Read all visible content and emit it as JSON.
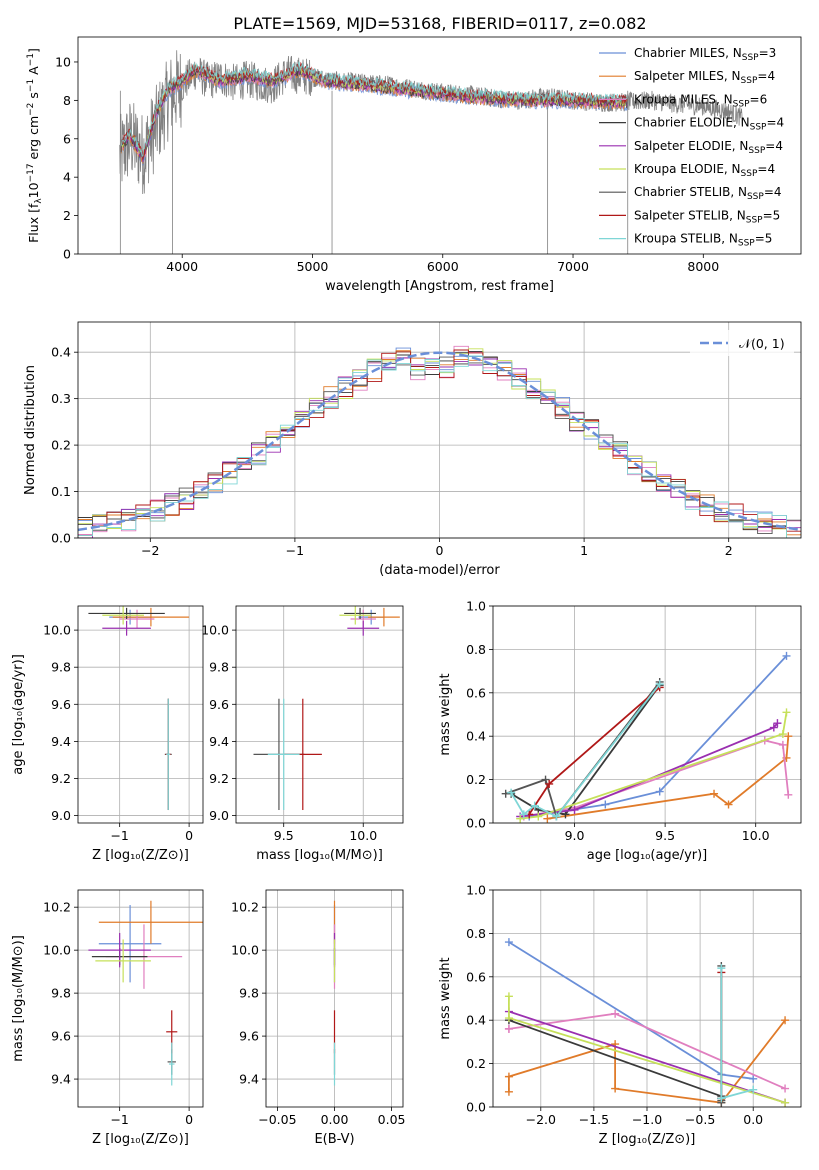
{
  "figure_title": "PLATE=1569, MJD=53168, FIBERID=0117, z=0.082",
  "colors": {
    "chabrier_miles": "#6a8fd8",
    "salpeter_miles": "#e07b2a",
    "kroupa_miles": "#e07fbf",
    "chabrier_elodie": "#3a3a3a",
    "salpeter_elodie": "#9a2fb0",
    "kroupa_elodie": "#c6e05a",
    "chabrier_stelib": "#555555",
    "salpeter_stelib": "#b01818",
    "kroupa_stelib": "#7fd6d6",
    "data": "#808080",
    "gaussian": "#6a8fd8"
  },
  "chart_data": [
    {
      "id": "spectrum",
      "type": "line",
      "xlabel": "wavelength [Angstrom, rest frame]",
      "ylabel": "Flux [f_λ10^-17 erg cm^-2 s^-1 A^-1]",
      "xlim": [
        3200,
        8750
      ],
      "ylim": [
        0,
        11.3
      ],
      "xticks": [
        4000,
        5000,
        6000,
        7000,
        8000
      ],
      "yticks": [
        0,
        2,
        4,
        6,
        8,
        10
      ],
      "grid": false,
      "legend_position": "right",
      "legend": [
        {
          "label": "Chabrier MILES, N",
          "sub": "SSP",
          "tail": "=3",
          "color_key": "chabrier_miles"
        },
        {
          "label": "Salpeter MILES, N",
          "sub": "SSP",
          "tail": "=4",
          "color_key": "salpeter_miles"
        },
        {
          "label": "Kroupa MILES, N",
          "sub": "SSP",
          "tail": "=6",
          "color_key": "kroupa_miles"
        },
        {
          "label": "Chabrier ELODIE, N",
          "sub": "SSP",
          "tail": "=4",
          "color_key": "chabrier_elodie"
        },
        {
          "label": "Salpeter ELODIE, N",
          "sub": "SSP",
          "tail": "=4",
          "color_key": "salpeter_elodie"
        },
        {
          "label": "Kroupa ELODIE, N",
          "sub": "SSP",
          "tail": "=4",
          "color_key": "kroupa_elodie"
        },
        {
          "label": "Chabrier STELIB, N",
          "sub": "SSP",
          "tail": "=4",
          "color_key": "chabrier_stelib"
        },
        {
          "label": "Salpeter STELIB, N",
          "sub": "SSP",
          "tail": "=5",
          "color_key": "salpeter_stelib"
        },
        {
          "label": "Kroupa STELIB, N",
          "sub": "SSP",
          "tail": "=5",
          "color_key": "kroupa_stelib"
        }
      ],
      "data_continuum": {
        "x": [
          3520,
          3600,
          3700,
          3800,
          3900,
          4000,
          4100,
          4200,
          4300,
          4400,
          4500,
          4600,
          4700,
          4800,
          4900,
          5000,
          5200,
          5400,
          5600,
          5800,
          6000,
          6200,
          6400,
          6600,
          6800,
          7000,
          7200,
          7400,
          7600,
          7800,
          8000,
          8200,
          8300
        ],
        "y": [
          5.0,
          6.0,
          5.2,
          6.6,
          8.2,
          8.8,
          9.5,
          9.0,
          9.2,
          8.9,
          9.1,
          8.9,
          8.8,
          9.4,
          9.3,
          9.2,
          9.0,
          8.9,
          8.8,
          8.6,
          8.4,
          8.3,
          8.1,
          8.0,
          8.2,
          8.0,
          7.9,
          7.9,
          8.0,
          7.8,
          7.7,
          7.4,
          7.1
        ]
      },
      "model_continuum": {
        "x": [
          3520,
          3600,
          3700,
          3800,
          3900,
          4000,
          4100,
          4200,
          4300,
          4500,
          4700,
          4900,
          5100,
          5400,
          5800,
          6200,
          6600,
          7000,
          7400
        ],
        "y": [
          5.5,
          6.2,
          5.0,
          7.4,
          8.6,
          9.0,
          9.6,
          9.3,
          9.0,
          9.3,
          9.0,
          9.6,
          9.0,
          8.8,
          8.5,
          8.2,
          8.0,
          8.0,
          7.9
        ]
      }
    },
    {
      "id": "residuals",
      "type": "step",
      "xlabel": "(data-model)/error",
      "ylabel": "Normed distribution",
      "xlim": [
        -2.5,
        2.5
      ],
      "ylim": [
        0,
        0.465
      ],
      "xticks": [
        -2,
        -1,
        0,
        1,
        2
      ],
      "xtick_labels": [
        "−2",
        "−1",
        "0",
        "1",
        "2"
      ],
      "yticks": [
        0.0,
        0.1,
        0.2,
        0.3,
        0.4
      ],
      "grid": true,
      "legend_position": "top-right",
      "legend_label": "𝒩(0, 1)",
      "gaussian": {
        "mean": 0,
        "sigma": 1
      }
    },
    {
      "id": "age_vs_Z",
      "type": "errorbar",
      "xlabel": "Z [log₁₀(Z/Z⊙)]",
      "ylabel": "age  [log₁₀(age/yr)]",
      "xlim": [
        -1.6,
        0.2
      ],
      "ylim": [
        8.96,
        10.13
      ],
      "xticks": [
        -1,
        0
      ],
      "xtick_labels": [
        "−1",
        "0"
      ],
      "yticks": [
        9.0,
        9.2,
        9.4,
        9.6,
        9.8,
        10.0
      ],
      "grid": true,
      "points": [
        {
          "c": "chabrier_miles",
          "x": -0.85,
          "y": 10.07,
          "xe": 0.3,
          "ye": 0.04
        },
        {
          "c": "salpeter_miles",
          "x": -0.55,
          "y": 10.07,
          "xe": 0.55,
          "ye": 0.05
        },
        {
          "c": "kroupa_miles",
          "x": -0.75,
          "y": 10.06,
          "xe": 0.25,
          "ye": 0.05
        },
        {
          "c": "chabrier_elodie",
          "x": -0.9,
          "y": 10.09,
          "xe": 0.55,
          "ye": 0.03
        },
        {
          "c": "salpeter_elodie",
          "x": -0.9,
          "y": 10.01,
          "xe": 0.35,
          "ye": 0.04
        },
        {
          "c": "kroupa_elodie",
          "x": -0.95,
          "y": 10.08,
          "xe": 0.3,
          "ye": 0.05
        },
        {
          "c": "chabrier_stelib",
          "x": -0.3,
          "y": 9.33,
          "xe": 0.05,
          "ye": 0.3
        },
        {
          "c": "salpeter_stelib",
          "x": -0.3,
          "y": 9.33,
          "xe": 0.04,
          "ye": 0.3
        },
        {
          "c": "kroupa_stelib",
          "x": -0.3,
          "y": 9.33,
          "xe": 0.03,
          "ye": 0.3
        }
      ]
    },
    {
      "id": "age_vs_mass",
      "type": "errorbar",
      "xlabel": "mass [log₁₀(M/M⊙)]",
      "ylabel": "",
      "xlim": [
        9.2,
        10.25
      ],
      "ylim": [
        8.96,
        10.13
      ],
      "xticks": [
        9.5,
        10.0
      ],
      "xtick_labels": [
        "9.5",
        "10.0"
      ],
      "yticks": [
        9.0,
        9.2,
        9.4,
        9.6,
        9.8,
        10.0
      ],
      "grid": true,
      "points": [
        {
          "c": "chabrier_miles",
          "x": 10.05,
          "y": 10.07,
          "xe": 0.08,
          "ye": 0.04
        },
        {
          "c": "salpeter_miles",
          "x": 10.13,
          "y": 10.07,
          "xe": 0.1,
          "ye": 0.05
        },
        {
          "c": "kroupa_miles",
          "x": 10.0,
          "y": 10.06,
          "xe": 0.08,
          "ye": 0.05
        },
        {
          "c": "chabrier_elodie",
          "x": 9.98,
          "y": 10.09,
          "xe": 0.1,
          "ye": 0.03
        },
        {
          "c": "salpeter_elodie",
          "x": 10.0,
          "y": 10.01,
          "xe": 0.1,
          "ye": 0.04
        },
        {
          "c": "kroupa_elodie",
          "x": 9.95,
          "y": 10.08,
          "xe": 0.1,
          "ye": 0.05
        },
        {
          "c": "chabrier_stelib",
          "x": 9.47,
          "y": 9.33,
          "xe": 0.16,
          "ye": 0.3
        },
        {
          "c": "salpeter_stelib",
          "x": 9.62,
          "y": 9.33,
          "xe": 0.12,
          "ye": 0.3
        },
        {
          "c": "kroupa_stelib",
          "x": 9.5,
          "y": 9.33,
          "xe": 0.1,
          "ye": 0.3
        }
      ]
    },
    {
      "id": "massweight_vs_age",
      "type": "line",
      "xlabel": "age  [log₁₀(age/yr)]",
      "ylabel": "mass weight",
      "xlim": [
        8.55,
        10.25
      ],
      "ylim": [
        0.0,
        1.0
      ],
      "xticks": [
        9.0,
        9.5,
        10.0
      ],
      "xtick_labels": [
        "9.0",
        "9.5",
        "10.0"
      ],
      "yticks": [
        0.0,
        0.2,
        0.4,
        0.6,
        0.8,
        1.0
      ],
      "grid": true,
      "series": [
        {
          "c": "chabrier_miles",
          "x": [
            8.75,
            9.17,
            9.47,
            10.17
          ],
          "y": [
            0.03,
            0.085,
            0.145,
            0.77
          ]
        },
        {
          "c": "salpeter_miles",
          "x": [
            8.85,
            9.77,
            9.85,
            10.17,
            10.18
          ],
          "y": [
            0.02,
            0.135,
            0.085,
            0.3,
            0.4
          ]
        },
        {
          "c": "kroupa_miles",
          "x": [
            8.72,
            9.0,
            10.05,
            10.15,
            10.18
          ],
          "y": [
            0.03,
            0.07,
            0.38,
            0.36,
            0.13
          ]
        },
        {
          "c": "chabrier_elodie",
          "x": [
            8.65,
            8.8,
            8.95,
            9.47
          ],
          "y": [
            0.135,
            0.06,
            0.04,
            0.635
          ]
        },
        {
          "c": "salpeter_elodie",
          "x": [
            8.7,
            9.0,
            10.1,
            10.12
          ],
          "y": [
            0.03,
            0.06,
            0.44,
            0.46
          ]
        },
        {
          "c": "kroupa_elodie",
          "x": [
            8.7,
            8.8,
            10.15,
            10.17
          ],
          "y": [
            0.02,
            0.03,
            0.41,
            0.51
          ]
        },
        {
          "c": "chabrier_stelib",
          "x": [
            8.62,
            8.84,
            8.9,
            9.47
          ],
          "y": [
            0.135,
            0.2,
            0.03,
            0.65
          ]
        },
        {
          "c": "salpeter_stelib",
          "x": [
            8.75,
            8.86,
            9.47
          ],
          "y": [
            0.04,
            0.18,
            0.625
          ]
        },
        {
          "c": "kroupa_stelib",
          "x": [
            8.65,
            8.72,
            8.78,
            8.9,
            9.47
          ],
          "y": [
            0.14,
            0.04,
            0.08,
            0.03,
            0.64
          ]
        }
      ]
    },
    {
      "id": "mass_vs_Z",
      "type": "errorbar",
      "xlabel": "Z [log₁₀(Z/Z⊙)]",
      "ylabel": "mass [log₁₀(M/M⊙)]",
      "xlim": [
        -1.6,
        0.2
      ],
      "ylim": [
        9.27,
        10.28
      ],
      "xticks": [
        -1,
        0
      ],
      "xtick_labels": [
        "−1",
        "0"
      ],
      "yticks": [
        9.4,
        9.6,
        9.8,
        10.0,
        10.2
      ],
      "grid": true,
      "points": [
        {
          "c": "chabrier_miles",
          "x": -0.85,
          "y": 10.03,
          "xe": 0.45,
          "ye": 0.18
        },
        {
          "c": "salpeter_miles",
          "x": -0.55,
          "y": 10.13,
          "xe": 0.75,
          "ye": 0.1
        },
        {
          "c": "kroupa_miles",
          "x": -0.65,
          "y": 9.97,
          "xe": 0.55,
          "ye": 0.15
        },
        {
          "c": "chabrier_elodie",
          "x": -1.0,
          "y": 9.97,
          "xe": 0.4,
          "ye": 0.04
        },
        {
          "c": "salpeter_elodie",
          "x": -1.0,
          "y": 10.0,
          "xe": 0.45,
          "ye": 0.08
        },
        {
          "c": "kroupa_elodie",
          "x": -0.95,
          "y": 9.95,
          "xe": 0.4,
          "ye": 0.1
        },
        {
          "c": "chabrier_stelib",
          "x": -0.25,
          "y": 9.48,
          "xe": 0.06,
          "ye": 0.06
        },
        {
          "c": "salpeter_stelib",
          "x": -0.25,
          "y": 9.62,
          "xe": 0.08,
          "ye": 0.1
        },
        {
          "c": "kroupa_stelib",
          "x": -0.25,
          "y": 9.47,
          "xe": 0.04,
          "ye": 0.1
        }
      ]
    },
    {
      "id": "mass_vs_ebv",
      "type": "errorbar",
      "xlabel": "E(B-V)",
      "ylabel": "",
      "xlim": [
        -0.06,
        0.06
      ],
      "ylim": [
        9.27,
        10.28
      ],
      "xticks": [
        -0.05,
        0.0,
        0.05
      ],
      "xtick_labels": [
        "−0.05",
        "0.00",
        "0.05"
      ],
      "yticks": [
        9.4,
        9.6,
        9.8,
        10.0,
        10.2
      ],
      "grid": true,
      "points": [
        {
          "c": "chabrier_miles",
          "x": 0.0,
          "y": 10.03,
          "xe": 0.0,
          "ye": 0.18
        },
        {
          "c": "salpeter_miles",
          "x": 0.0,
          "y": 10.13,
          "xe": 0.0,
          "ye": 0.1
        },
        {
          "c": "kroupa_miles",
          "x": 0.0,
          "y": 9.97,
          "xe": 0.0,
          "ye": 0.15
        },
        {
          "c": "chabrier_elodie",
          "x": 0.0,
          "y": 9.97,
          "xe": 0.0,
          "ye": 0.04
        },
        {
          "c": "salpeter_elodie",
          "x": 0.0,
          "y": 10.0,
          "xe": 0.0,
          "ye": 0.08
        },
        {
          "c": "kroupa_elodie",
          "x": 0.0,
          "y": 9.95,
          "xe": 0.0,
          "ye": 0.1
        },
        {
          "c": "chabrier_stelib",
          "x": 0.0,
          "y": 9.48,
          "xe": 0.0,
          "ye": 0.06
        },
        {
          "c": "salpeter_stelib",
          "x": 0.0,
          "y": 9.62,
          "xe": 0.0,
          "ye": 0.1
        },
        {
          "c": "kroupa_stelib",
          "x": 0.0,
          "y": 9.47,
          "xe": 0.0,
          "ye": 0.1
        }
      ]
    },
    {
      "id": "massweight_vs_Z",
      "type": "line",
      "xlabel": "Z [log₁₀(Z/Z⊙)]",
      "ylabel": "mass weight",
      "xlim": [
        -2.45,
        0.45
      ],
      "ylim": [
        0.0,
        1.0
      ],
      "xticks": [
        -2.0,
        -1.5,
        -1.0,
        -0.5,
        0.0
      ],
      "xtick_labels": [
        "−2.0",
        "−1.5",
        "−1.0",
        "−0.5",
        "0.0"
      ],
      "yticks": [
        0.0,
        0.2,
        0.4,
        0.6,
        0.8,
        1.0
      ],
      "grid": true,
      "series": [
        {
          "c": "chabrier_miles",
          "x": [
            -2.3,
            -0.3,
            0.0
          ],
          "y": [
            0.76,
            0.15,
            0.13
          ]
        },
        {
          "c": "salpeter_miles",
          "x": [
            -2.3,
            -2.3,
            -1.3,
            -1.3,
            -0.3,
            0.3
          ],
          "y": [
            0.07,
            0.14,
            0.29,
            0.085,
            0.02,
            0.4
          ]
        },
        {
          "c": "kroupa_miles",
          "x": [
            -2.3,
            -2.3,
            -1.3,
            0.3
          ],
          "y": [
            0.36,
            0.36,
            0.43,
            0.085
          ]
        },
        {
          "c": "chabrier_elodie",
          "x": [
            -2.3,
            -0.3,
            -0.3
          ],
          "y": [
            0.4,
            0.05,
            0.04
          ]
        },
        {
          "c": "salpeter_elodie",
          "x": [
            -2.3,
            0.3
          ],
          "y": [
            0.44,
            0.02
          ]
        },
        {
          "c": "kroupa_elodie",
          "x": [
            -2.3,
            -2.3,
            0.3
          ],
          "y": [
            0.51,
            0.41,
            0.02
          ]
        },
        {
          "c": "chabrier_stelib",
          "x": [
            -0.3,
            -0.3,
            -0.3,
            -0.3
          ],
          "y": [
            0.65,
            0.04,
            0.03,
            0.02
          ]
        },
        {
          "c": "salpeter_stelib",
          "x": [
            -0.3,
            -0.3
          ],
          "y": [
            0.62,
            0.04
          ]
        },
        {
          "c": "kroupa_stelib",
          "x": [
            -0.3,
            -0.3,
            0.0
          ],
          "y": [
            0.64,
            0.04,
            0.08
          ]
        }
      ]
    }
  ]
}
